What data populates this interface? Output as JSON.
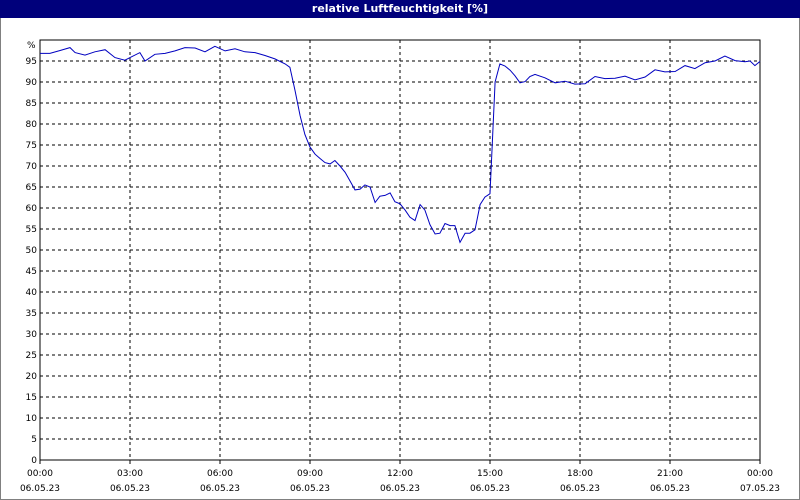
{
  "window": {
    "title": "relative Luftfeuchtigkeit [%]"
  },
  "chart_data": {
    "type": "line",
    "title": "relative Luftfeuchtigkeit [%]",
    "ylabel": "%",
    "xlabel": "",
    "ylim": [
      0,
      100
    ],
    "xlim_hours": [
      0,
      24
    ],
    "y_ticks": [
      0,
      5,
      10,
      15,
      20,
      25,
      30,
      35,
      40,
      45,
      50,
      55,
      60,
      65,
      70,
      75,
      80,
      85,
      90,
      95
    ],
    "x_ticks": [
      {
        "hour": 0,
        "time": "00:00",
        "date": "06.05.23"
      },
      {
        "hour": 3,
        "time": "03:00",
        "date": "06.05.23"
      },
      {
        "hour": 6,
        "time": "06:00",
        "date": "06.05.23"
      },
      {
        "hour": 9,
        "time": "09:00",
        "date": "06.05.23"
      },
      {
        "hour": 12,
        "time": "12:00",
        "date": "06.05.23"
      },
      {
        "hour": 15,
        "time": "15:00",
        "date": "06.05.23"
      },
      {
        "hour": 18,
        "time": "18:00",
        "date": "06.05.23"
      },
      {
        "hour": 21,
        "time": "21:00",
        "date": "06.05.23"
      },
      {
        "hour": 24,
        "time": "00:00",
        "date": "07.05.23"
      }
    ],
    "grid": true,
    "line_color": "#0000c0",
    "series": [
      {
        "x": [
          0.0,
          0.33,
          0.67,
          1.0,
          1.17,
          1.5,
          1.83,
          2.17,
          2.5,
          2.83,
          3.0,
          3.33,
          3.5,
          3.83,
          4.17,
          4.5,
          4.83,
          5.17,
          5.5,
          5.83,
          6.17,
          6.5,
          6.83,
          7.17,
          7.5,
          7.83,
          8.17,
          8.33,
          8.5,
          8.67,
          8.83,
          9.0,
          9.17,
          9.33,
          9.5,
          9.67,
          9.83,
          10.0,
          10.17,
          10.33,
          10.5,
          10.67,
          10.83,
          11.0,
          11.17,
          11.33,
          11.5,
          11.67,
          11.83,
          12.0,
          12.17,
          12.33,
          12.5,
          12.67,
          12.83,
          13.0,
          13.17,
          13.33,
          13.5,
          13.67,
          13.83,
          14.0,
          14.17,
          14.33,
          14.5,
          14.67,
          14.83,
          15.0,
          15.17,
          15.33,
          15.5,
          15.67,
          15.83,
          16.0,
          16.17,
          16.33,
          16.5,
          16.83,
          17.17,
          17.5,
          17.83,
          18.17,
          18.5,
          18.83,
          19.17,
          19.5,
          19.83,
          20.17,
          20.5,
          20.83,
          21.17,
          21.5,
          21.83,
          22.17,
          22.5,
          22.83,
          23.17,
          23.5,
          23.67,
          23.83,
          24.0
        ],
        "y": [
          96.8,
          96.8,
          97.5,
          98.2,
          97.0,
          96.4,
          97.2,
          97.7,
          95.8,
          95.2,
          95.8,
          97.0,
          95.0,
          96.6,
          96.8,
          97.4,
          98.2,
          98.1,
          97.2,
          98.5,
          97.4,
          97.9,
          97.2,
          97.0,
          96.3,
          95.5,
          94.3,
          93.5,
          88.0,
          82.0,
          77.5,
          74.5,
          72.8,
          71.8,
          70.8,
          70.5,
          71.3,
          70.0,
          68.5,
          66.5,
          64.3,
          64.5,
          65.5,
          65.0,
          61.3,
          62.8,
          63.0,
          63.6,
          61.5,
          61.0,
          59.5,
          57.8,
          57.0,
          60.8,
          59.5,
          56.0,
          53.8,
          54.0,
          56.3,
          55.8,
          55.8,
          51.8,
          54.0,
          54.0,
          54.8,
          60.8,
          62.6,
          63.4,
          90.0,
          94.3,
          93.8,
          92.8,
          91.5,
          89.8,
          90.1,
          91.3,
          91.8,
          91.0,
          89.8,
          90.2,
          89.5,
          89.6,
          91.3,
          90.8,
          90.9,
          91.4,
          90.5,
          91.2,
          92.9,
          92.4,
          92.5,
          93.9,
          93.2,
          94.6,
          95.0,
          96.2,
          95.1,
          94.8,
          95.0,
          93.9,
          94.9
        ]
      }
    ]
  }
}
